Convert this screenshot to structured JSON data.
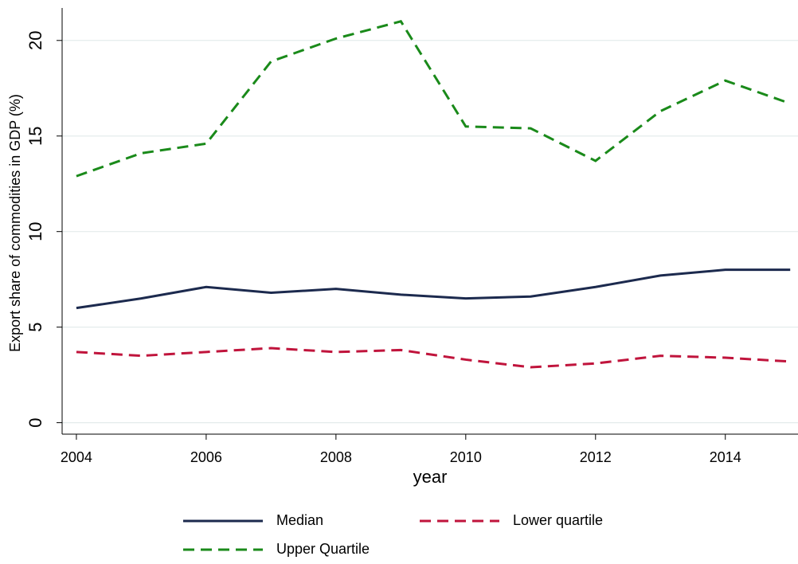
{
  "chart_data": {
    "type": "line",
    "x_label": "year",
    "y_label": "Export share of commodities in GDP (%)",
    "x": [
      2004,
      2005,
      2006,
      2007,
      2008,
      2009,
      2010,
      2011,
      2012,
      2013,
      2014,
      2015
    ],
    "series": [
      {
        "name": "Median",
        "color": "#1c2a4e",
        "dash": "solid",
        "values": [
          6.0,
          6.5,
          7.1,
          6.8,
          7.0,
          6.7,
          6.5,
          6.6,
          7.1,
          7.7,
          8.0,
          8.0
        ]
      },
      {
        "name": "Lower quartile",
        "color": "#c0143c",
        "dash": "dashed",
        "values": [
          3.7,
          3.5,
          3.7,
          3.9,
          3.7,
          3.8,
          3.3,
          2.9,
          3.1,
          3.5,
          3.4,
          3.2
        ]
      },
      {
        "name": "Upper Quartile",
        "color": "#1a8a1a",
        "dash": "dashed",
        "values": [
          12.9,
          14.1,
          14.6,
          18.9,
          20.1,
          21.0,
          15.5,
          15.4,
          13.7,
          16.3,
          17.9,
          16.7
        ]
      }
    ],
    "xlim": [
      2003.78,
      2015.12
    ],
    "ylim": [
      -0.6,
      21.7
    ],
    "xticks": [
      2004,
      2006,
      2008,
      2010,
      2012,
      2014
    ],
    "yticks": [
      0,
      5,
      10,
      15,
      20
    ],
    "grid": true
  }
}
